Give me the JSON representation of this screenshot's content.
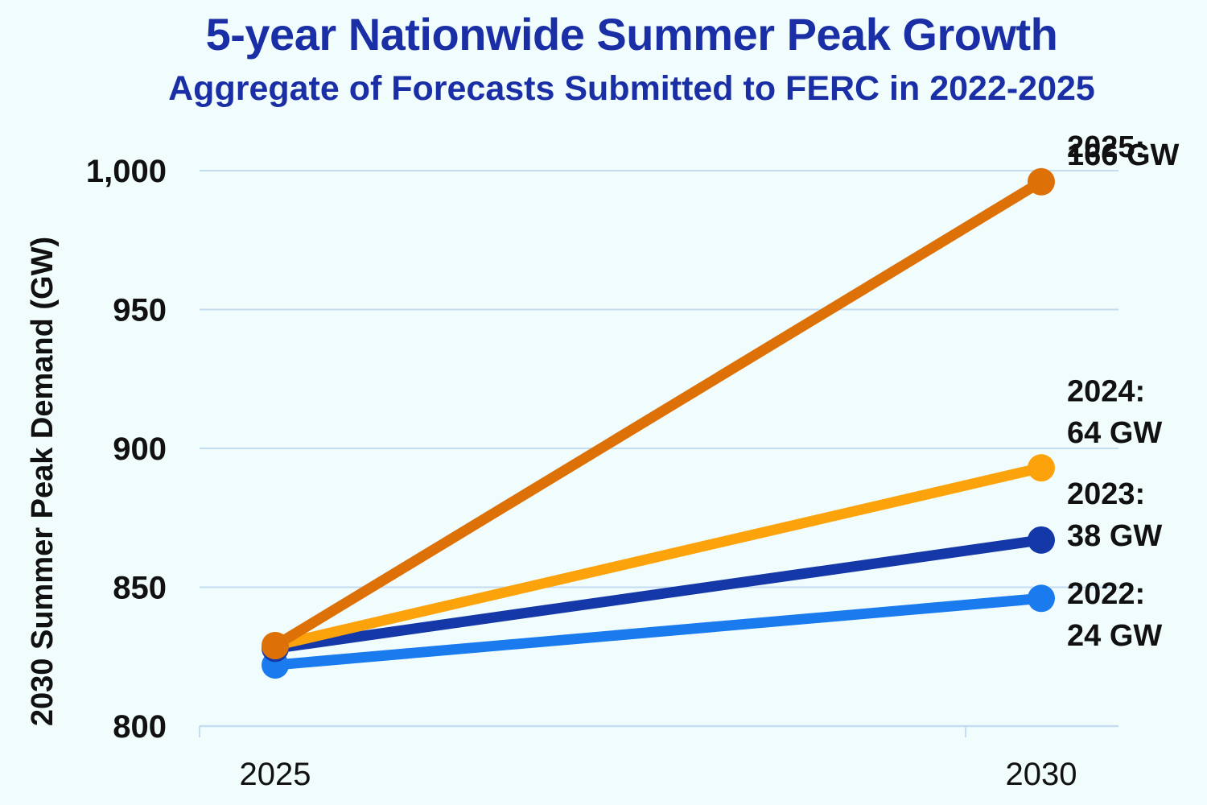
{
  "chart_data": {
    "type": "line",
    "title": "5-year Nationwide Summer Peak Growth",
    "subtitle": "Aggregate of Forecasts Submitted to FERC in 2022-2025",
    "xlabel": "",
    "ylabel": "2030 Summer Peak Demand (GW)",
    "categories": [
      "2025",
      "2030"
    ],
    "ylim": [
      800,
      1000
    ],
    "yticks": [
      800,
      850,
      900,
      950,
      1000
    ],
    "ytick_labels": [
      "800",
      "850",
      "900",
      "950",
      "1,000"
    ],
    "grid": "horizontal",
    "series": [
      {
        "name": "2022",
        "values": [
          822,
          846
        ],
        "color": "#1a7bef",
        "label_year": "2022:",
        "label_growth": "24 GW"
      },
      {
        "name": "2023",
        "values": [
          828,
          867
        ],
        "color": "#1438a8",
        "label_year": "2023:",
        "label_growth": "38 GW"
      },
      {
        "name": "2024",
        "values": [
          829,
          893
        ],
        "color": "#fca30b",
        "label_year": "2024:",
        "label_growth": "64 GW"
      },
      {
        "name": "2025",
        "values": [
          829,
          996
        ],
        "color": "#dd7108",
        "label_year": "2025:",
        "label_growth": "166 GW"
      }
    ],
    "series_label_positions": {
      "2025": {
        "year_y": 1005,
        "growth_y": 1002
      },
      "2024": {
        "year_y": 917,
        "growth_y": 902
      },
      "2023": {
        "year_y": 880,
        "growth_y": 865
      },
      "2022": {
        "year_y": 844,
        "growth_y": 829
      }
    }
  }
}
